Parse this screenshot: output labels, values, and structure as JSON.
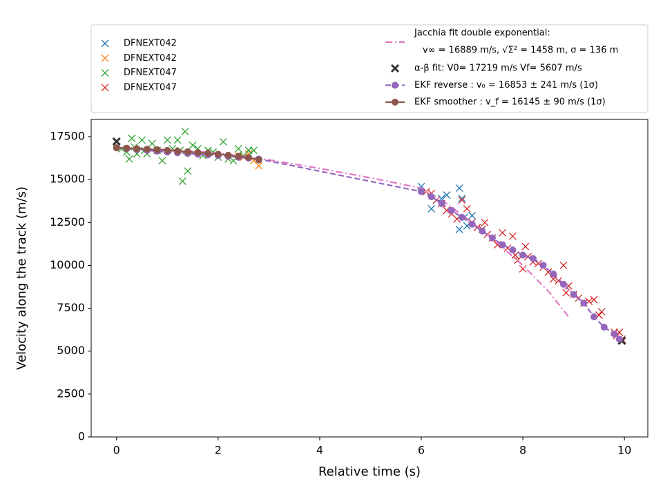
{
  "chart_data": {
    "type": "scatter",
    "xlabel": "Relative time (s)",
    "ylabel": "Velocity along the track (m/s)",
    "xlim": [
      -0.5,
      10.46
    ],
    "ylim": [
      0,
      18506
    ],
    "xticks": [
      0,
      2,
      4,
      6,
      8,
      10
    ],
    "yticks": [
      0,
      2500,
      5000,
      7500,
      10000,
      12500,
      15000,
      17500
    ],
    "series": [
      {
        "name": "DFNEXT042",
        "color": "#1f77b4",
        "marker": "x",
        "line": null,
        "x": [
          6.0,
          6.2,
          6.4,
          6.5,
          6.75,
          6.75,
          6.8,
          6.85,
          6.9,
          7.0
        ],
        "values": [
          14600,
          13300,
          13900,
          14100,
          14500,
          12100,
          13900,
          12800,
          12300,
          12900
        ]
      },
      {
        "name": "DFNEXT042",
        "color": "#ff7f0e",
        "marker": "x",
        "line": null,
        "x": [
          2.4,
          2.5,
          2.6,
          2.7,
          2.8
        ],
        "values": [
          16400,
          16300,
          16500,
          16100,
          15800
        ]
      },
      {
        "name": "DFNEXT047",
        "color": "#2ca02c",
        "marker": "x",
        "line": null,
        "x": [
          0.1,
          0.2,
          0.25,
          0.3,
          0.35,
          0.4,
          0.5,
          0.55,
          0.6,
          0.7,
          0.8,
          0.9,
          1.0,
          1.1,
          1.2,
          1.25,
          1.3,
          1.35,
          1.4,
          1.5,
          1.6,
          1.7,
          1.8,
          1.9,
          2.0,
          2.1,
          2.2,
          2.3,
          2.4,
          2.5,
          2.6,
          2.7
        ],
        "values": [
          16800,
          16600,
          16200,
          17400,
          16900,
          16500,
          17300,
          16700,
          16500,
          17100,
          16700,
          16100,
          17300,
          16800,
          17300,
          16700,
          14900,
          17800,
          15500,
          17000,
          16800,
          16400,
          16700,
          16600,
          16300,
          17200,
          16200,
          16100,
          16800,
          16400,
          16700,
          16700
        ]
      },
      {
        "name": "DFNEXT047",
        "color": "#d62728",
        "marker": "x",
        "line": null,
        "x": [
          6.1,
          6.2,
          6.3,
          6.4,
          6.5,
          6.6,
          6.7,
          6.8,
          6.9,
          7.0,
          7.1,
          7.2,
          7.25,
          7.3,
          7.4,
          7.5,
          7.6,
          7.7,
          7.8,
          7.85,
          7.9,
          8.0,
          8.05,
          8.1,
          8.2,
          8.3,
          8.4,
          8.5,
          8.6,
          8.7,
          8.8,
          8.85,
          8.9,
          9.0,
          9.1,
          9.2,
          9.3,
          9.4,
          9.5,
          9.55,
          9.8,
          9.85,
          9.9,
          9.95
        ],
        "values": [
          14300,
          14200,
          13800,
          13600,
          13200,
          13000,
          12700,
          13800,
          13300,
          12500,
          12200,
          12100,
          12500,
          11800,
          11600,
          11200,
          11900,
          11000,
          11700,
          10600,
          10300,
          9800,
          11100,
          10500,
          10200,
          10100,
          9900,
          9600,
          9200,
          9100,
          10000,
          8400,
          8800,
          8300,
          8100,
          7800,
          7900,
          8000,
          7100,
          7300,
          6100,
          5900,
          6100,
          5700
        ]
      },
      {
        "name": "Jacchia fit double exponential:",
        "name_detail": "v∞ = 16889 m/s, √Σ² = 1458 m, σ = 136 m",
        "color": "#e377c2",
        "marker": null,
        "line": "dashdot",
        "x": [
          0,
          1,
          2,
          3,
          4,
          5,
          6,
          6.5,
          7,
          7.5,
          8,
          8.5,
          8.9
        ],
        "values": [
          16880,
          16750,
          16550,
          16150,
          15650,
          15100,
          14500,
          13600,
          12500,
          11300,
          10000,
          8500,
          7000
        ]
      },
      {
        "name": "α-β fit: V0= 17219 m/s   Vf= 5607 m/s",
        "color": "#333333",
        "marker": "X",
        "line": null,
        "x": [
          0,
          9.95
        ],
        "values": [
          17219,
          5607
        ]
      },
      {
        "name": "EKF reverse : v₀ =  16853 ± 241 m/s (1σ)",
        "color": "#9467bd",
        "marker": "o",
        "line": "dashed",
        "x": [
          0,
          0.2,
          0.4,
          0.6,
          0.8,
          1.0,
          1.2,
          1.4,
          1.6,
          1.8,
          2.0,
          2.2,
          2.4,
          2.6,
          2.8,
          6.0,
          6.2,
          6.4,
          6.6,
          6.8,
          7.0,
          7.2,
          7.4,
          7.6,
          7.8,
          8.0,
          8.2,
          8.4,
          8.6,
          8.8,
          9.0,
          9.2,
          9.4,
          9.6,
          9.8,
          9.9
        ],
        "values": [
          16853,
          16800,
          16750,
          16700,
          16650,
          16600,
          16560,
          16520,
          16480,
          16440,
          16400,
          16350,
          16300,
          16250,
          16200,
          14300,
          14000,
          13600,
          13200,
          12800,
          12400,
          12000,
          11600,
          11200,
          10900,
          10600,
          10400,
          10000,
          9500,
          8900,
          8300,
          7800,
          7000,
          6400,
          6000,
          5700
        ]
      },
      {
        "name": "EKF smoother : v_f =  16145 ± 90 m/s (1σ)",
        "color": "#8c564b",
        "marker": "o",
        "line": "solid",
        "x": [
          0,
          0.2,
          0.4,
          0.6,
          0.8,
          1.0,
          1.2,
          1.4,
          1.6,
          1.8,
          2.0,
          2.2,
          2.4,
          2.6,
          2.8
        ],
        "values": [
          16850,
          16830,
          16800,
          16770,
          16740,
          16700,
          16660,
          16620,
          16580,
          16530,
          16480,
          16420,
          16360,
          16290,
          16145
        ]
      }
    ]
  }
}
